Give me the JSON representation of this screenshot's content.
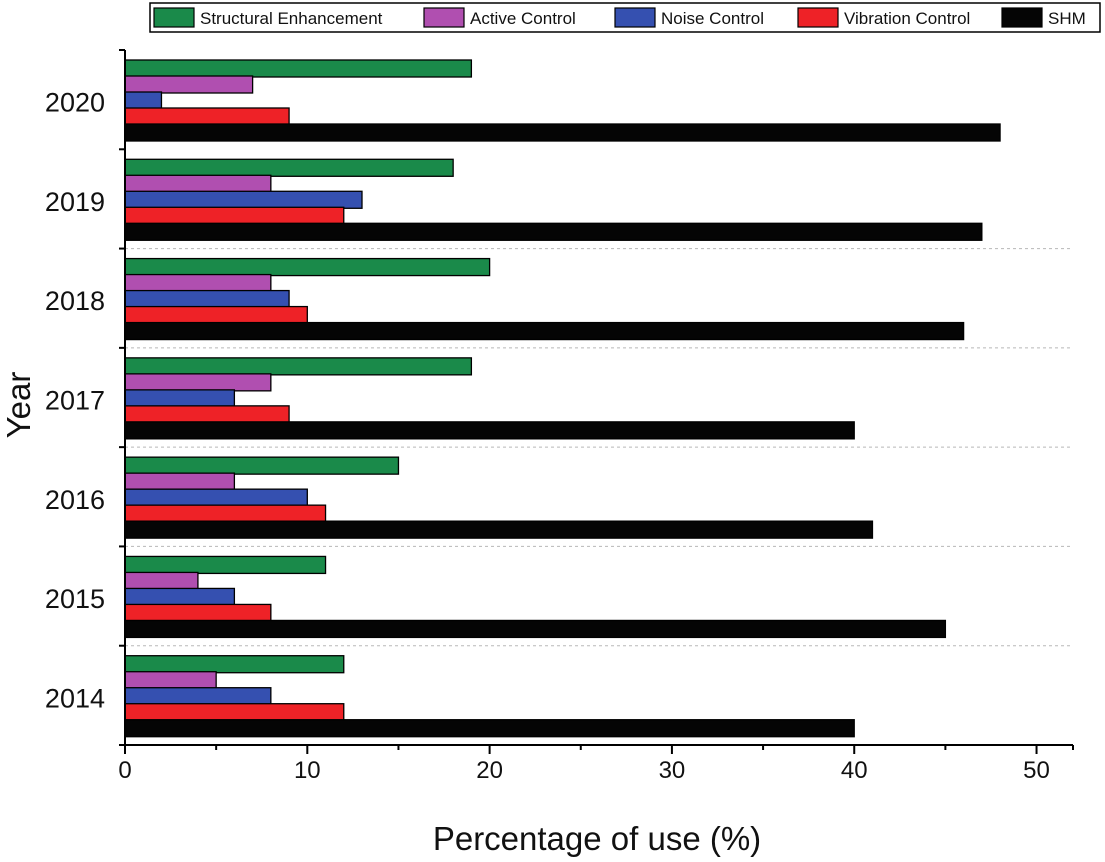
{
  "chart_data": {
    "type": "bar",
    "orientation": "horizontal",
    "title": "",
    "xlabel": "Percentage of use (%)",
    "ylabel": "Year",
    "xlim": [
      0,
      52
    ],
    "xticks": [
      0,
      10,
      20,
      30,
      40,
      50
    ],
    "categories": [
      "2020",
      "2019",
      "2018",
      "2017",
      "2016",
      "2015",
      "2014"
    ],
    "legend_position": "top",
    "series": [
      {
        "name": "Structural Enhancement",
        "color": "#1a8a4a",
        "values": [
          19,
          18,
          20,
          19,
          15,
          11,
          12
        ]
      },
      {
        "name": "Active Control",
        "color": "#b04fb0",
        "values": [
          7,
          8,
          8,
          8,
          6,
          4,
          5
        ]
      },
      {
        "name": "Noise Control",
        "color": "#3550b0",
        "values": [
          2,
          13,
          9,
          6,
          10,
          6,
          8
        ]
      },
      {
        "name": "Vibration Control",
        "color": "#ee2227",
        "values": [
          9,
          12,
          10,
          9,
          11,
          8,
          12
        ]
      },
      {
        "name": "SHM",
        "color": "#050505",
        "values": [
          48,
          47,
          46,
          40,
          41,
          45,
          40
        ]
      }
    ]
  }
}
